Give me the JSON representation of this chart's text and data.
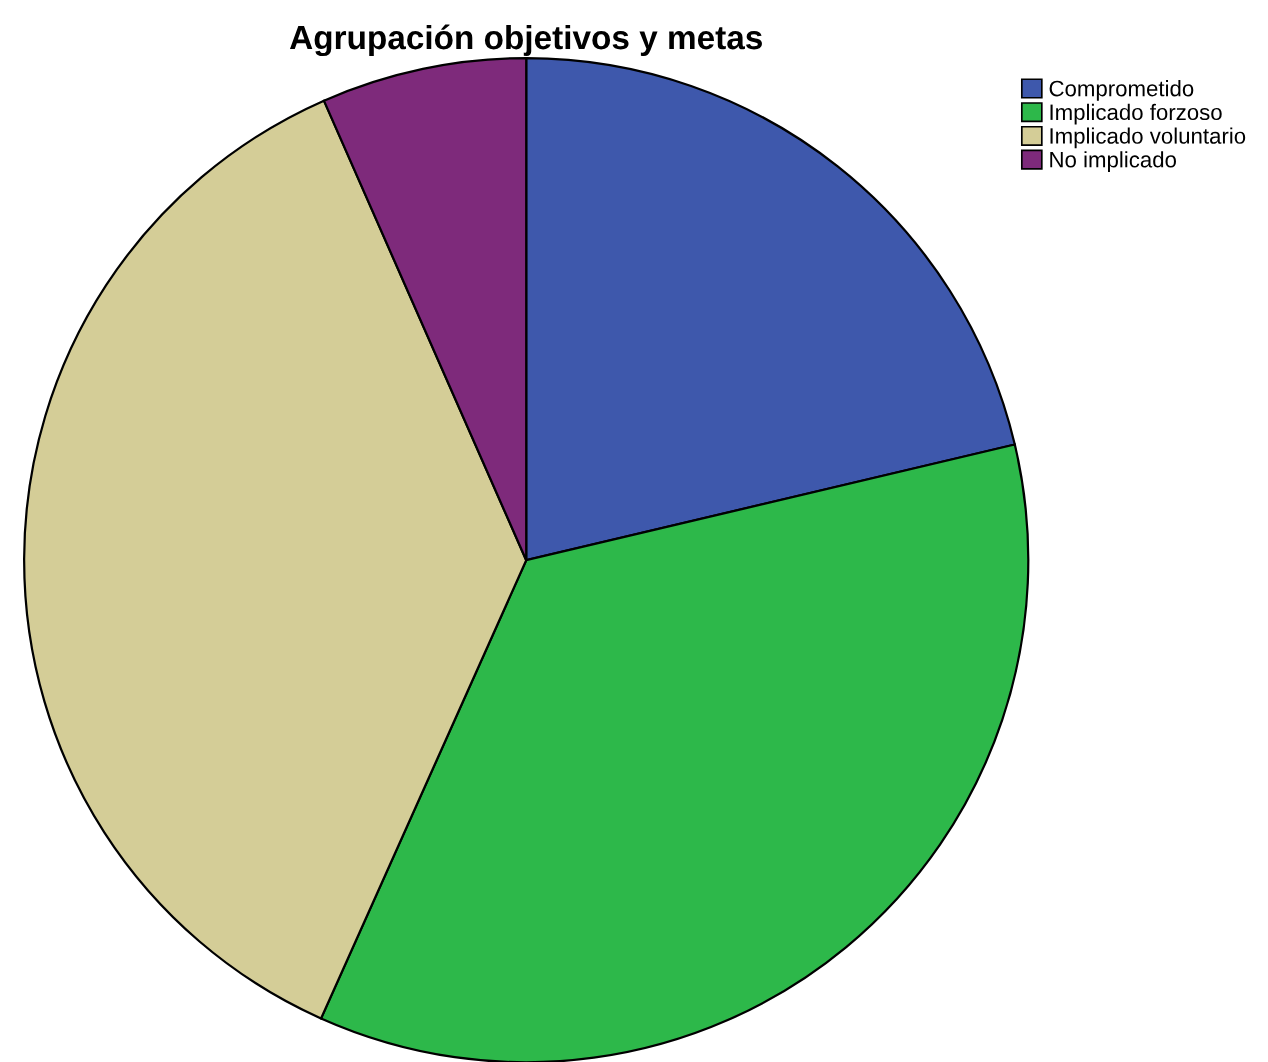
{
  "chart_data": {
    "type": "pie",
    "title": "Agrupación objetivos y metas",
    "categories": [
      "Comprometido",
      "Implicado forzoso",
      "Implicado voluntario",
      "No implicado"
    ],
    "values": [
      21.3,
      35.4,
      36.7,
      6.6
    ],
    "colors": [
      "#3e58ac",
      "#2db84a",
      "#d4cd97",
      "#7e2a7b"
    ],
    "legend": "top right"
  }
}
